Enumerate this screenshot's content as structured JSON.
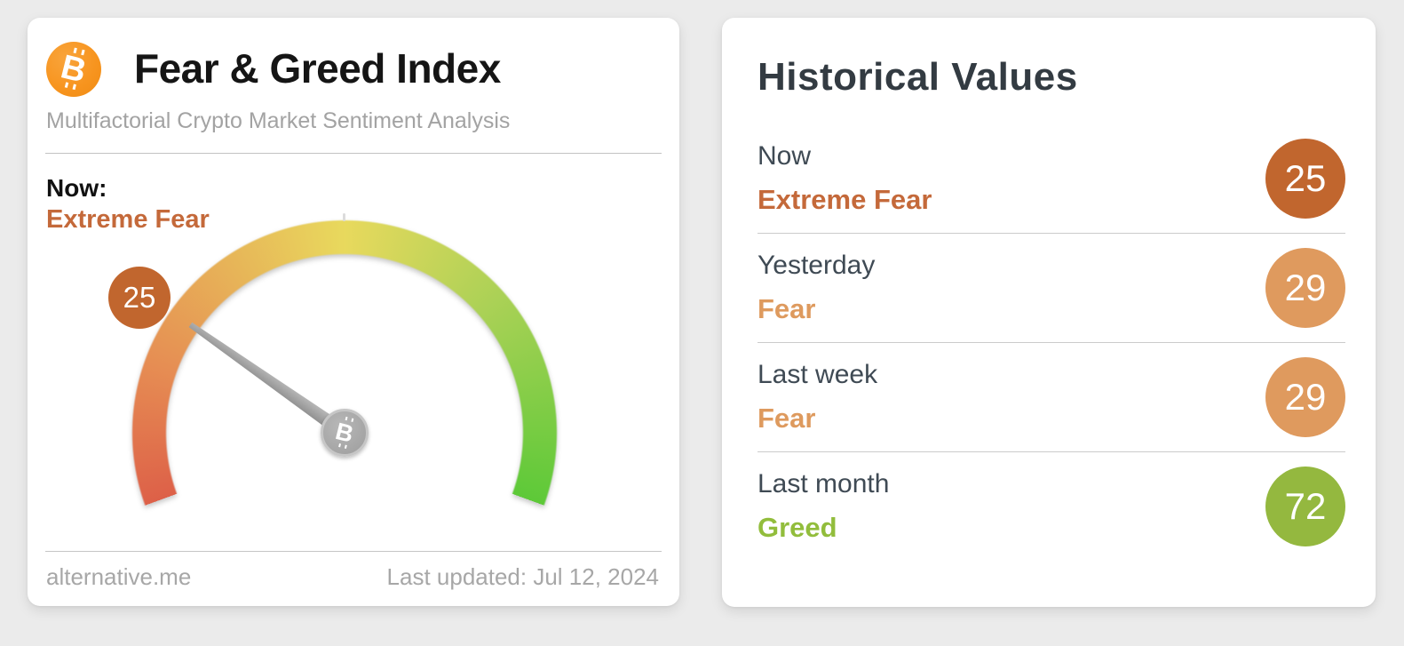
{
  "page": {
    "background": "#ebebeb"
  },
  "fear_greed_card": {
    "title": "Fear & Greed Index",
    "subtitle": "Multifactorial Crypto Market Sentiment Analysis",
    "now_label": "Now:",
    "now_sentiment": "Extreme Fear",
    "sentiment_color": "#c4693a",
    "gauge_value_label": "25",
    "gauge_badge_color": "#c1662e",
    "source": "alternative.me",
    "last_updated": "Last updated: Jul 12, 2024",
    "btc_letter": "B"
  },
  "historical_card": {
    "title": "Historical Values",
    "rows": [
      {
        "label": "Now",
        "sentiment": "Extreme Fear",
        "value": "25",
        "text_color": "#c4693a",
        "badge_color": "#c1662e"
      },
      {
        "label": "Yesterday",
        "sentiment": "Fear",
        "value": "29",
        "text_color": "#de9a5e",
        "badge_color": "#df9a5e"
      },
      {
        "label": "Last week",
        "sentiment": "Fear",
        "value": "29",
        "text_color": "#de9a5e",
        "badge_color": "#df9a5e"
      },
      {
        "label": "Last month",
        "sentiment": "Greed",
        "value": "72",
        "text_color": "#92bd3c",
        "badge_color": "#94b83f"
      }
    ]
  },
  "chart_data": {
    "type": "gauge",
    "title": "Fear & Greed Index",
    "subtitle": "Multifactorial Crypto Market Sentiment Analysis",
    "value": 25,
    "min": 0,
    "max": 100,
    "classification": "Extreme Fear",
    "last_updated": "Last updated: Jul 12, 2024",
    "source": "alternative.me",
    "angle_start_deg": -110,
    "angle_sweep_deg": 220,
    "color_stops": [
      {
        "at": 0.0,
        "color": "#dd6048"
      },
      {
        "at": 0.18,
        "color": "#e68d53"
      },
      {
        "at": 0.5,
        "color": "#e8d95d"
      },
      {
        "at": 0.72,
        "color": "#abd156"
      },
      {
        "at": 1.0,
        "color": "#5dc938"
      }
    ],
    "historical": [
      {
        "period": "Now",
        "value": 25,
        "classification": "Extreme Fear"
      },
      {
        "period": "Yesterday",
        "value": 29,
        "classification": "Fear"
      },
      {
        "period": "Last week",
        "value": 29,
        "classification": "Fear"
      },
      {
        "period": "Last month",
        "value": 72,
        "classification": "Greed"
      }
    ]
  }
}
